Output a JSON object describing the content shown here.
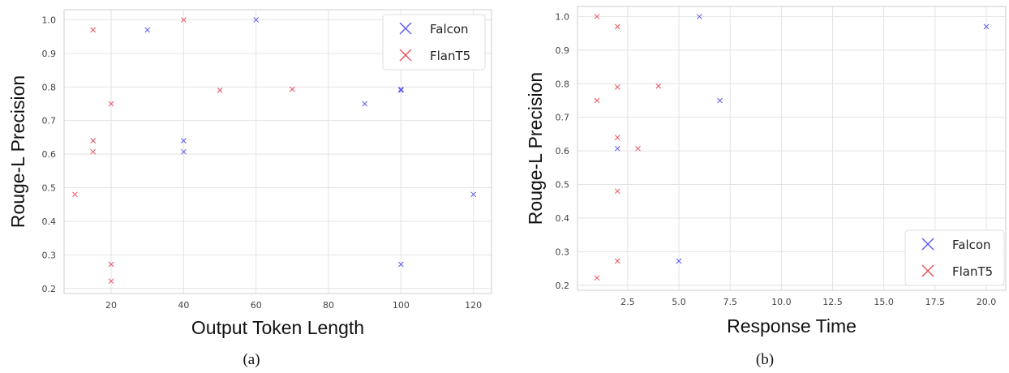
{
  "chart_data": [
    {
      "type": "scatter",
      "caption": "(a)",
      "xlabel": "Output Token Length",
      "ylabel": "Rouge-L Precision",
      "xlim": [
        7,
        125
      ],
      "ylim": [
        0.185,
        1.03
      ],
      "xticks": [
        20,
        40,
        60,
        80,
        100,
        120
      ],
      "xtick_labels": [
        "20",
        "40",
        "60",
        "80",
        "100",
        "120"
      ],
      "yticks": [
        0.2,
        0.3,
        0.4,
        0.5,
        0.6,
        0.7,
        0.8,
        0.9,
        1.0
      ],
      "ytick_labels": [
        "0.2",
        "0.3",
        "0.4",
        "0.5",
        "0.6",
        "0.7",
        "0.8",
        "0.9",
        "1.0"
      ],
      "grid": true,
      "legend_position": "top-right",
      "marker": "x",
      "series": [
        {
          "name": "Falcon",
          "color": "#5b5bf0",
          "points": [
            [
              30,
              0.97
            ],
            [
              40,
              0.64
            ],
            [
              40,
              0.607
            ],
            [
              60,
              1.0
            ],
            [
              90,
              0.75
            ],
            [
              100,
              0.79
            ],
            [
              100,
              0.793
            ],
            [
              100,
              0.272
            ],
            [
              120,
              0.48
            ]
          ]
        },
        {
          "name": "FlanT5",
          "color": "#e8505e",
          "points": [
            [
              10,
              0.48
            ],
            [
              15,
              0.97
            ],
            [
              15,
              0.64
            ],
            [
              15,
              0.607
            ],
            [
              20,
              0.75
            ],
            [
              20,
              0.272
            ],
            [
              20,
              0.222
            ],
            [
              40,
              1.0
            ],
            [
              50,
              0.79
            ],
            [
              70,
              0.793
            ]
          ]
        }
      ]
    },
    {
      "type": "scatter",
      "caption": "(b)",
      "xlabel": "Response Time",
      "ylabel": "Rouge-L Precision",
      "xlim": [
        0.05,
        20.95
      ],
      "ylim": [
        0.185,
        1.03
      ],
      "xticks": [
        2.5,
        5.0,
        7.5,
        10.0,
        12.5,
        15.0,
        17.5,
        20.0
      ],
      "xtick_labels": [
        "2.5",
        "5.0",
        "7.5",
        "10.0",
        "12.5",
        "15.0",
        "17.5",
        "20.0"
      ],
      "yticks": [
        0.2,
        0.3,
        0.4,
        0.5,
        0.6,
        0.7,
        0.8,
        0.9,
        1.0
      ],
      "ytick_labels": [
        "0.2",
        "0.3",
        "0.4",
        "0.5",
        "0.6",
        "0.7",
        "0.8",
        "0.9",
        "1.0"
      ],
      "grid": true,
      "legend_position": "bottom-right",
      "marker": "x",
      "series": [
        {
          "name": "Falcon",
          "color": "#5b5bf0",
          "points": [
            [
              2,
              0.607
            ],
            [
              5,
              0.272
            ],
            [
              6,
              1.0
            ],
            [
              7,
              0.75
            ],
            [
              20,
              0.97
            ]
          ]
        },
        {
          "name": "FlanT5",
          "color": "#e8505e",
          "points": [
            [
              1,
              1.0
            ],
            [
              1,
              0.75
            ],
            [
              1,
              0.222
            ],
            [
              2,
              0.97
            ],
            [
              2,
              0.79
            ],
            [
              2,
              0.64
            ],
            [
              2,
              0.48
            ],
            [
              2,
              0.272
            ],
            [
              3,
              0.607
            ],
            [
              4,
              0.793
            ]
          ]
        }
      ]
    }
  ]
}
